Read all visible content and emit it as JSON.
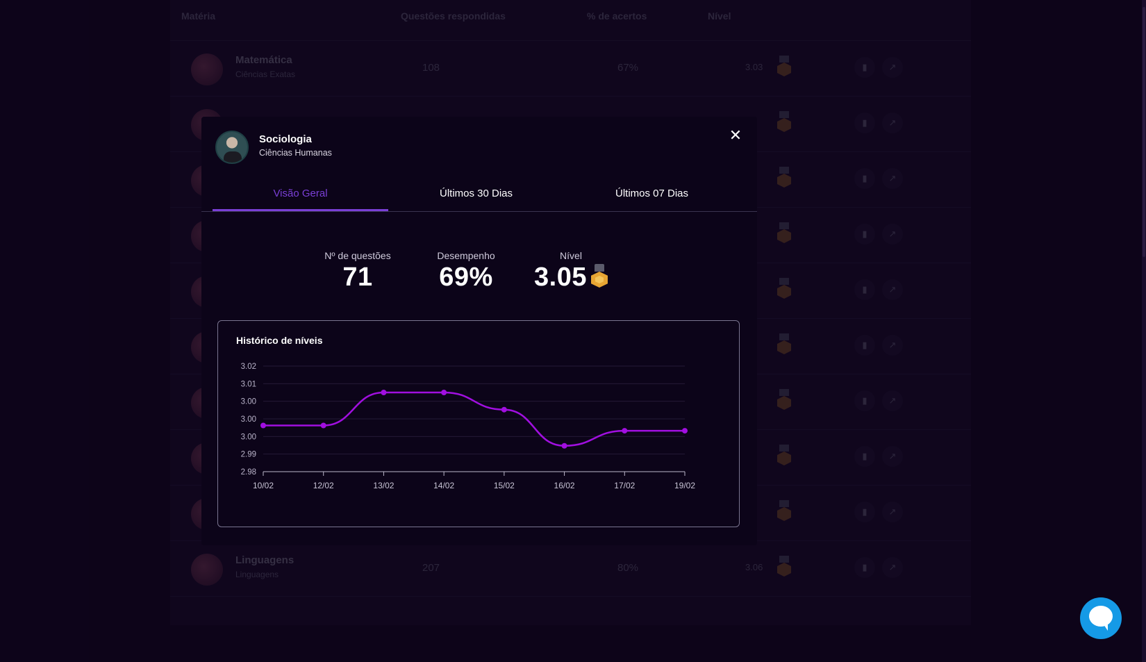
{
  "table": {
    "headers": [
      "Matéria",
      "Questões respondidas",
      "% de acertos",
      "Nível"
    ],
    "rows": [
      {
        "name": "Matemática",
        "area": "Ciências Exatas",
        "questions": "108",
        "pct": "67%",
        "level": "3.03"
      },
      {
        "name": "",
        "area": "",
        "questions": "",
        "pct": "",
        "level": "9"
      },
      {
        "name": "",
        "area": "",
        "questions": "",
        "pct": "",
        "level": "7"
      },
      {
        "name": "",
        "area": "",
        "questions": "",
        "pct": "",
        "level": "0"
      },
      {
        "name": "",
        "area": "",
        "questions": "",
        "pct": "",
        "level": "4"
      },
      {
        "name": "",
        "area": "",
        "questions": "",
        "pct": "",
        "level": "3"
      },
      {
        "name": "",
        "area": "",
        "questions": "",
        "pct": "",
        "level": "3"
      },
      {
        "name": "",
        "area": "",
        "questions": "",
        "pct": "",
        "level": "3"
      },
      {
        "name": "",
        "area": "",
        "questions": "",
        "pct": "",
        "level": "5"
      },
      {
        "name": "Linguagens",
        "area": "Linguagens",
        "questions": "207",
        "pct": "80%",
        "level": "3.06"
      }
    ],
    "row_icons": [
      "bar-chart-icon",
      "external-link-icon"
    ]
  },
  "modal": {
    "title": "Sociologia",
    "subtitle": "Ciências Humanas",
    "close_icon": "close-icon",
    "tabs": [
      {
        "label": "Visão Geral",
        "active": true
      },
      {
        "label": "Últimos 30 Dias",
        "active": false
      },
      {
        "label": "Últimos 07 Dias",
        "active": false
      }
    ],
    "stats": {
      "questions_label": "Nº de questões",
      "questions_value": "71",
      "performance_label": "Desempenho",
      "performance_value": "69%",
      "level_label": "Nível",
      "level_value": "3.05",
      "medal_icon": "gold-medal-icon"
    },
    "chart_title": "Histórico de níveis"
  },
  "colors": {
    "accent": "#7a3fd6",
    "line": "#a10fe0",
    "chat": "#159ae6",
    "medal": "#e7a533"
  },
  "chart_data": {
    "type": "line",
    "title": "Histórico de níveis",
    "x": [
      "10/02",
      "12/02",
      "13/02",
      "14/02",
      "15/02",
      "16/02",
      "17/02",
      "19/02"
    ],
    "series": [
      {
        "values": [
          2.9975,
          2.9975,
          3.01,
          3.01,
          3.0035,
          2.9898,
          2.9955,
          2.9955
        ]
      }
    ],
    "yticks": [
      "3.02",
      "3.01",
      "3.00",
      "3.00",
      "3.00",
      "2.99",
      "2.98"
    ],
    "ylim": [
      2.98,
      3.02
    ],
    "grid": true,
    "smooth": true
  }
}
